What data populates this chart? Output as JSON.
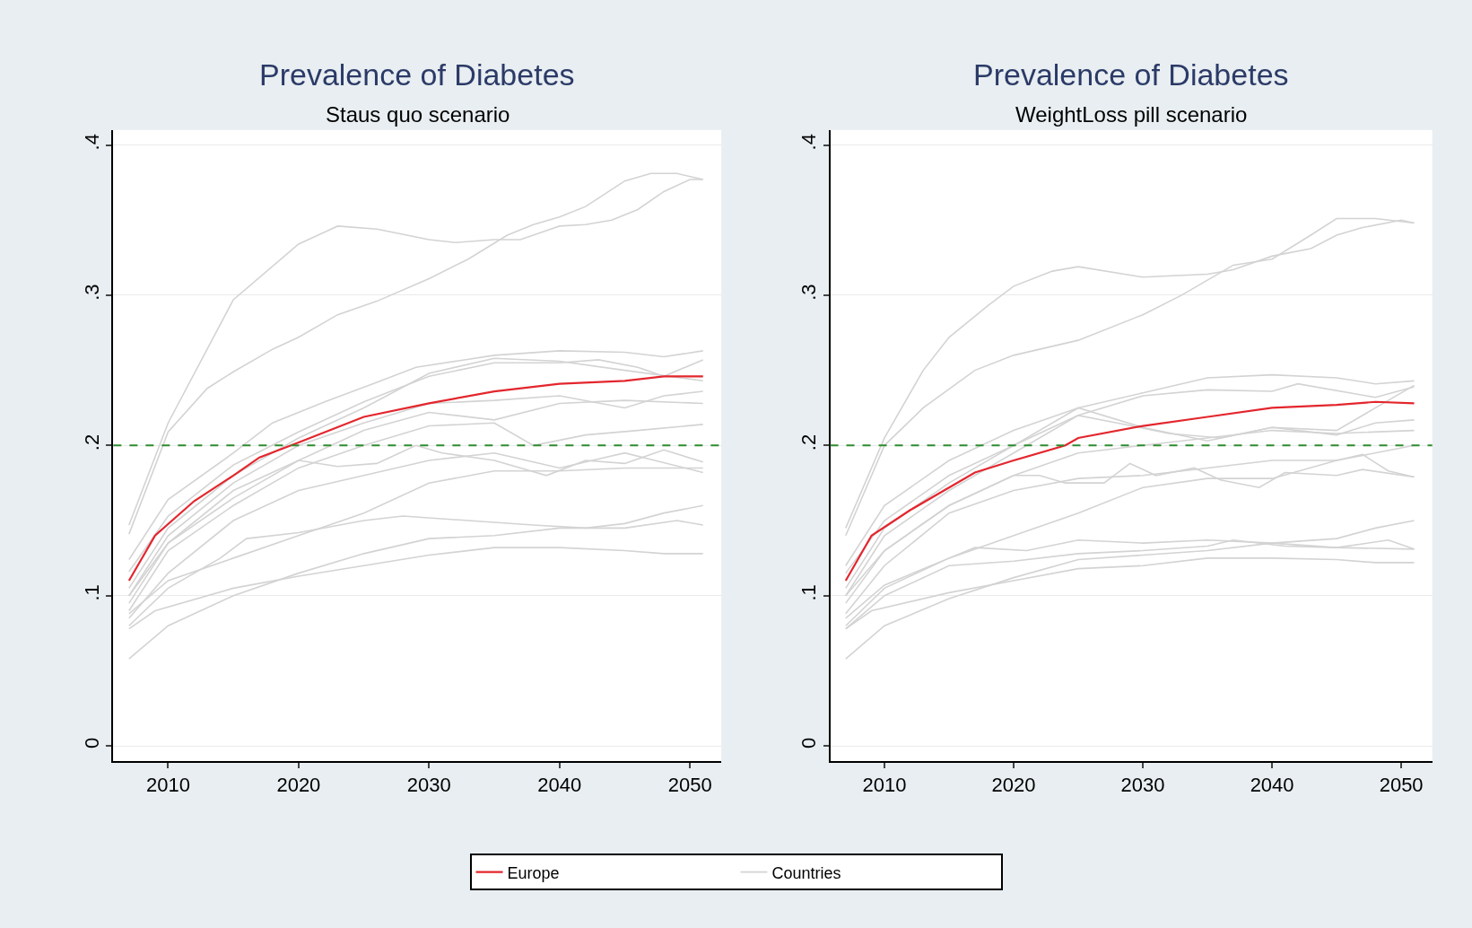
{
  "chart_data": [
    {
      "type": "line",
      "title": "Prevalence of Diabetes",
      "subtitle": "Staus quo scenario",
      "xlim": [
        2005.8,
        2052.4
      ],
      "xticks": [
        2010,
        2020,
        2030,
        2040,
        2050
      ],
      "ylim": [
        -0.01,
        0.41
      ],
      "yticks": [
        0,
        {
          "value": 0.1,
          "label": ".1"
        },
        {
          "value": 0.2,
          "label": ".2"
        },
        {
          "value": 0.3,
          "label": ".3"
        },
        {
          "value": 0.4,
          "label": ".4"
        }
      ],
      "grid": "y",
      "legend": "bottom",
      "line_style": "solid",
      "marker": "none",
      "ref_lines": [
        {
          "axis": "y",
          "value": 0.2,
          "color": "#2e8b2e",
          "line_style": "dashed"
        }
      ],
      "series": [
        {
          "name": "Countries",
          "color": "#d3d3d3",
          "x": [
            2007,
            2010,
            2015,
            2020,
            2023,
            2026,
            2030,
            2032,
            2035,
            2037,
            2040,
            2042,
            2044,
            2046,
            2048,
            2050,
            2051
          ],
          "values": [
            0.147,
            0.215,
            0.297,
            0.334,
            0.346,
            0.344,
            0.337,
            0.335,
            0.337,
            0.337,
            0.346,
            0.347,
            0.35,
            0.357,
            0.369,
            0.377,
            0.377
          ]
        },
        {
          "color": "#d3d3d3",
          "x": [
            2007,
            2010,
            2013,
            2015,
            2018,
            2020,
            2023,
            2026,
            2030,
            2033,
            2036,
            2038,
            2040,
            2042,
            2045,
            2047,
            2049,
            2051
          ],
          "values": [
            0.141,
            0.209,
            0.238,
            0.249,
            0.264,
            0.272,
            0.287,
            0.296,
            0.311,
            0.324,
            0.34,
            0.347,
            0.352,
            0.359,
            0.376,
            0.381,
            0.381,
            0.377
          ]
        },
        {
          "color": "#d3d3d3",
          "x": [
            2007,
            2010,
            2015,
            2018,
            2022,
            2026,
            2029,
            2035,
            2040,
            2045,
            2048,
            2051
          ],
          "values": [
            0.124,
            0.164,
            0.195,
            0.215,
            0.229,
            0.242,
            0.252,
            0.26,
            0.263,
            0.262,
            0.259,
            0.263
          ]
        },
        {
          "color": "#d3d3d3",
          "x": [
            2007,
            2010,
            2015,
            2020,
            2025,
            2030,
            2035,
            2040,
            2043,
            2046,
            2048,
            2051
          ],
          "values": [
            0.116,
            0.153,
            0.187,
            0.209,
            0.229,
            0.246,
            0.255,
            0.255,
            0.257,
            0.252,
            0.246,
            0.257
          ]
        },
        {
          "color": "#d3d3d3",
          "x": [
            2007,
            2010,
            2015,
            2020,
            2025,
            2030,
            2035,
            2040,
            2045,
            2051
          ],
          "values": [
            0.105,
            0.145,
            0.18,
            0.205,
            0.225,
            0.248,
            0.258,
            0.256,
            0.25,
            0.243
          ]
        },
        {
          "color": "#d3d3d3",
          "x": [
            2007,
            2010,
            2015,
            2020,
            2025,
            2030,
            2035,
            2040,
            2045,
            2048,
            2051
          ],
          "values": [
            0.1,
            0.14,
            0.175,
            0.2,
            0.215,
            0.228,
            0.23,
            0.233,
            0.225,
            0.233,
            0.236
          ]
        },
        {
          "color": "#d3d3d3",
          "x": [
            2007,
            2010,
            2015,
            2020,
            2025,
            2030,
            2035,
            2040,
            2045,
            2051
          ],
          "values": [
            0.095,
            0.135,
            0.17,
            0.19,
            0.21,
            0.222,
            0.217,
            0.228,
            0.23,
            0.228
          ]
        },
        {
          "color": "#d3d3d3",
          "x": [
            2007,
            2010,
            2015,
            2020,
            2025,
            2030,
            2035,
            2038,
            2042,
            2046,
            2051
          ],
          "values": [
            0.09,
            0.13,
            0.16,
            0.185,
            0.2,
            0.213,
            0.215,
            0.2,
            0.207,
            0.21,
            0.214
          ]
        },
        {
          "color": "#d3d3d3",
          "x": [
            2007,
            2010,
            2015,
            2020,
            2023,
            2026,
            2029,
            2031,
            2035,
            2039,
            2042,
            2045,
            2048,
            2051
          ],
          "values": [
            0.1,
            0.135,
            0.165,
            0.19,
            0.186,
            0.188,
            0.2,
            0.195,
            0.19,
            0.18,
            0.19,
            0.188,
            0.197,
            0.189
          ]
        },
        {
          "color": "#d3d3d3",
          "x": [
            2007,
            2010,
            2015,
            2020,
            2025,
            2030,
            2035,
            2040,
            2045,
            2051
          ],
          "values": [
            0.085,
            0.115,
            0.15,
            0.17,
            0.18,
            0.19,
            0.195,
            0.185,
            0.195,
            0.182
          ]
        },
        {
          "color": "#d3d3d3",
          "x": [
            2007,
            2010,
            2015,
            2020,
            2025,
            2030,
            2035,
            2040,
            2045,
            2051
          ],
          "values": [
            0.088,
            0.11,
            0.125,
            0.14,
            0.155,
            0.175,
            0.183,
            0.183,
            0.185,
            0.185
          ]
        },
        {
          "color": "#d3d3d3",
          "x": [
            2007,
            2010,
            2014,
            2016,
            2020,
            2025,
            2028,
            2033,
            2038,
            2042,
            2045,
            2048,
            2051
          ],
          "values": [
            0.08,
            0.105,
            0.125,
            0.138,
            0.142,
            0.15,
            0.153,
            0.15,
            0.147,
            0.145,
            0.148,
            0.155,
            0.16
          ]
        },
        {
          "color": "#d3d3d3",
          "x": [
            2007,
            2010,
            2015,
            2020,
            2025,
            2030,
            2035,
            2040,
            2045,
            2049,
            2051
          ],
          "values": [
            0.058,
            0.08,
            0.1,
            0.115,
            0.128,
            0.138,
            0.14,
            0.145,
            0.145,
            0.15,
            0.147
          ]
        },
        {
          "color": "#d3d3d3",
          "x": [
            2007,
            2009,
            2015,
            2020,
            2025,
            2030,
            2035,
            2040,
            2045,
            2048,
            2051
          ],
          "values": [
            0.078,
            0.09,
            0.105,
            0.113,
            0.12,
            0.127,
            0.132,
            0.132,
            0.13,
            0.128,
            0.128
          ]
        },
        {
          "name": "Europe",
          "color": "#e3262d",
          "x": [
            2007,
            2009,
            2012,
            2015,
            2017,
            2020,
            2025,
            2030,
            2035,
            2040,
            2045,
            2048,
            2051
          ],
          "values": [
            0.11,
            0.14,
            0.163,
            0.18,
            0.192,
            0.202,
            0.219,
            0.228,
            0.236,
            0.241,
            0.243,
            0.246,
            0.246
          ]
        }
      ]
    },
    {
      "type": "line",
      "title": "Prevalence of Diabetes",
      "subtitle": "WeightLoss pill scenario",
      "xlim": [
        2005.8,
        2052.4
      ],
      "xticks": [
        2010,
        2020,
        2030,
        2040,
        2050
      ],
      "ylim": [
        -0.01,
        0.41
      ],
      "yticks": [
        0,
        {
          "value": 0.1,
          "label": ".1"
        },
        {
          "value": 0.2,
          "label": ".2"
        },
        {
          "value": 0.3,
          "label": ".3"
        },
        {
          "value": 0.4,
          "label": ".4"
        }
      ],
      "grid": "y",
      "line_style": "solid",
      "marker": "none",
      "ref_lines": [
        {
          "axis": "y",
          "value": 0.2,
          "color": "#2e8b2e",
          "line_style": "dashed"
        }
      ],
      "series": [
        {
          "color": "#d3d3d3",
          "x": [
            2007,
            2010,
            2013,
            2015,
            2018,
            2020,
            2023,
            2025,
            2030,
            2035,
            2037,
            2040,
            2043,
            2045,
            2047,
            2050,
            2051
          ],
          "values": [
            0.145,
            0.205,
            0.25,
            0.272,
            0.293,
            0.306,
            0.316,
            0.319,
            0.312,
            0.314,
            0.317,
            0.326,
            0.331,
            0.34,
            0.345,
            0.35,
            0.348
          ]
        },
        {
          "color": "#d3d3d3",
          "x": [
            2007,
            2010,
            2013,
            2017,
            2020,
            2025,
            2030,
            2033,
            2037,
            2040,
            2043,
            2045,
            2048,
            2051
          ],
          "values": [
            0.14,
            0.2,
            0.225,
            0.25,
            0.26,
            0.27,
            0.287,
            0.3,
            0.32,
            0.324,
            0.34,
            0.351,
            0.351,
            0.348
          ]
        },
        {
          "color": "#d3d3d3",
          "x": [
            2007,
            2010,
            2015,
            2020,
            2025,
            2030,
            2035,
            2040,
            2045,
            2048,
            2051
          ],
          "values": [
            0.12,
            0.16,
            0.19,
            0.21,
            0.225,
            0.235,
            0.245,
            0.247,
            0.245,
            0.241,
            0.243
          ]
        },
        {
          "color": "#d3d3d3",
          "x": [
            2007,
            2010,
            2015,
            2020,
            2025,
            2030,
            2035,
            2040,
            2042,
            2048,
            2051
          ],
          "values": [
            0.115,
            0.15,
            0.18,
            0.2,
            0.22,
            0.233,
            0.237,
            0.236,
            0.241,
            0.232,
            0.239
          ]
        },
        {
          "color": "#d3d3d3",
          "x": [
            2007,
            2010,
            2015,
            2020,
            2025,
            2030,
            2035,
            2040,
            2045,
            2051
          ],
          "values": [
            0.105,
            0.145,
            0.175,
            0.2,
            0.225,
            0.212,
            0.203,
            0.212,
            0.21,
            0.24
          ]
        },
        {
          "color": "#d3d3d3",
          "x": [
            2007,
            2010,
            2015,
            2020,
            2025,
            2028,
            2032,
            2036,
            2040,
            2045,
            2048,
            2051
          ],
          "values": [
            0.1,
            0.14,
            0.17,
            0.195,
            0.22,
            0.215,
            0.208,
            0.205,
            0.212,
            0.207,
            0.215,
            0.217
          ]
        },
        {
          "color": "#d3d3d3",
          "x": [
            2007,
            2010,
            2015,
            2020,
            2025,
            2030,
            2035,
            2040,
            2045,
            2051
          ],
          "values": [
            0.095,
            0.13,
            0.16,
            0.18,
            0.195,
            0.2,
            0.205,
            0.21,
            0.208,
            0.21
          ]
        },
        {
          "color": "#d3d3d3",
          "x": [
            2007,
            2010,
            2015,
            2020,
            2022,
            2024,
            2027,
            2029,
            2031,
            2034,
            2036,
            2039,
            2041,
            2045,
            2047,
            2051
          ],
          "values": [
            0.1,
            0.13,
            0.16,
            0.18,
            0.18,
            0.175,
            0.175,
            0.188,
            0.18,
            0.185,
            0.177,
            0.172,
            0.182,
            0.18,
            0.184,
            0.179
          ]
        },
        {
          "color": "#d3d3d3",
          "x": [
            2007,
            2010,
            2015,
            2020,
            2025,
            2030,
            2035,
            2040,
            2045,
            2047,
            2049,
            2051
          ],
          "values": [
            0.088,
            0.12,
            0.155,
            0.17,
            0.178,
            0.18,
            0.185,
            0.19,
            0.19,
            0.194,
            0.183,
            0.179
          ]
        },
        {
          "color": "#d3d3d3",
          "x": [
            2007,
            2010,
            2015,
            2020,
            2025,
            2030,
            2035,
            2040,
            2045,
            2051
          ],
          "values": [
            0.085,
            0.107,
            0.125,
            0.14,
            0.155,
            0.172,
            0.178,
            0.178,
            0.19,
            0.2
          ]
        },
        {
          "color": "#d3d3d3",
          "x": [
            2007,
            2010,
            2015,
            2017,
            2021,
            2025,
            2030,
            2035,
            2040,
            2045,
            2048,
            2051
          ],
          "values": [
            0.08,
            0.105,
            0.125,
            0.132,
            0.13,
            0.137,
            0.135,
            0.137,
            0.135,
            0.138,
            0.145,
            0.15
          ]
        },
        {
          "color": "#d3d3d3",
          "x": [
            2007,
            2010,
            2015,
            2020,
            2025,
            2030,
            2035,
            2037,
            2041,
            2045,
            2049,
            2051
          ],
          "values": [
            0.078,
            0.1,
            0.12,
            0.123,
            0.128,
            0.13,
            0.133,
            0.137,
            0.133,
            0.132,
            0.137,
            0.131
          ]
        },
        {
          "color": "#d3d3d3",
          "x": [
            2007,
            2009,
            2015,
            2020,
            2025,
            2030,
            2035,
            2040,
            2045,
            2048,
            2051
          ],
          "values": [
            0.078,
            0.09,
            0.102,
            0.11,
            0.118,
            0.12,
            0.125,
            0.125,
            0.124,
            0.122,
            0.122
          ]
        },
        {
          "color": "#d3d3d3",
          "x": [
            2007,
            2010,
            2015,
            2020,
            2025,
            2030,
            2035,
            2040,
            2045,
            2051
          ],
          "values": [
            0.058,
            0.08,
            0.098,
            0.112,
            0.124,
            0.127,
            0.13,
            0.135,
            0.132,
            0.131
          ]
        },
        {
          "color": "#e3262d",
          "x": [
            2007,
            2009,
            2012,
            2015,
            2017,
            2020,
            2024,
            2025,
            2030,
            2035,
            2040,
            2045,
            2048,
            2051
          ],
          "values": [
            0.11,
            0.14,
            0.157,
            0.172,
            0.182,
            0.19,
            0.2,
            0.205,
            0.213,
            0.219,
            0.225,
            0.227,
            0.229,
            0.228
          ]
        }
      ]
    }
  ]
}
